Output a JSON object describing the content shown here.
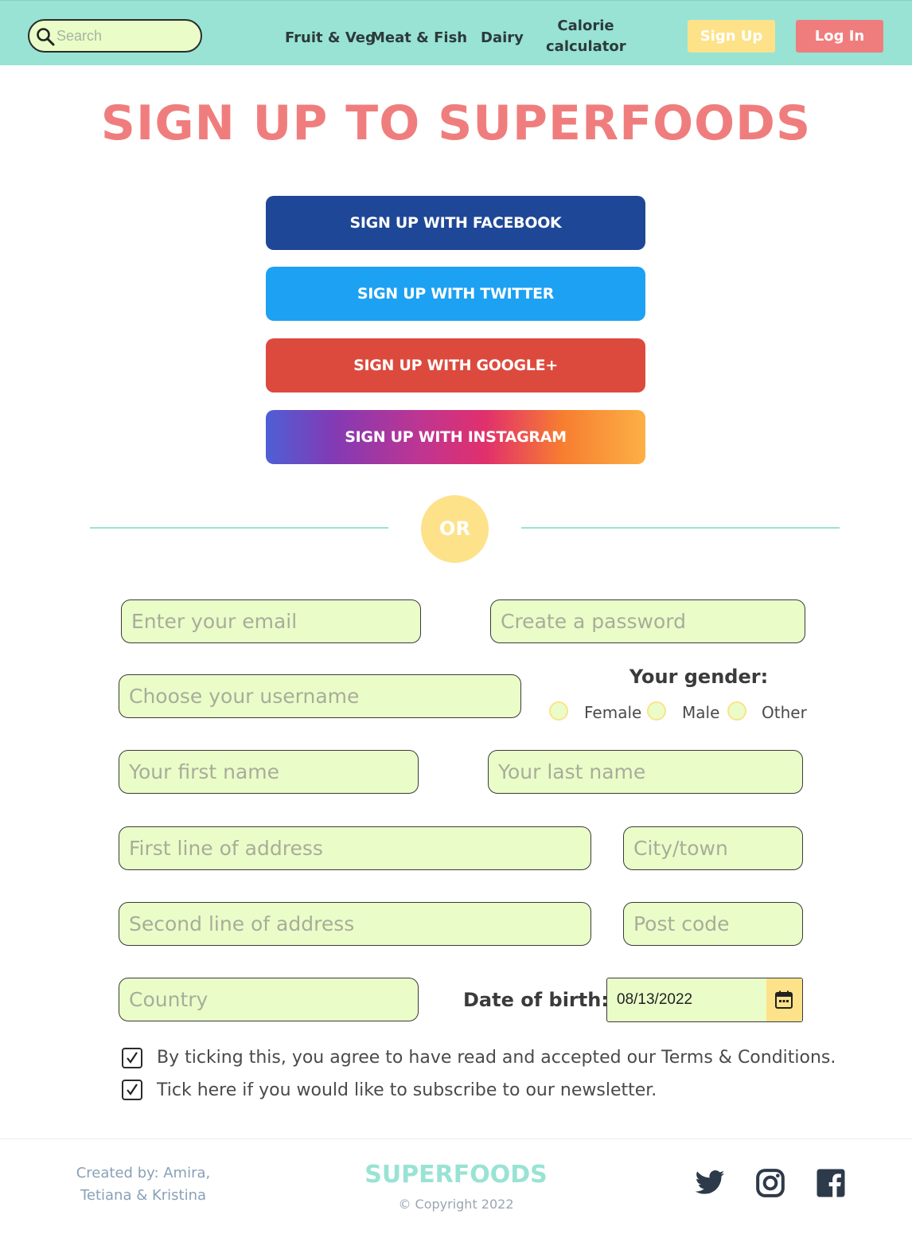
{
  "nav": {
    "search_placeholder": "Search",
    "links": [
      "Fruit & Veg",
      "Meat & Fish",
      "Dairy",
      "Calorie calculator"
    ],
    "calorie_line1": "Calorie",
    "calorie_line2": "calculator",
    "signup_label": "Sign Up",
    "login_label": "Log In"
  },
  "title": "SIGN UP TO SUPERFOODS",
  "social": {
    "facebook": "SIGN UP WITH FACEBOOK",
    "twitter": "SIGN UP WITH TWITTER",
    "google": "SIGN UP WITH GOOGLE+",
    "instagram": "SIGN UP WITH INSTAGRAM"
  },
  "or_label": "OR",
  "form": {
    "email_placeholder": "Enter your email",
    "password_placeholder": "Create a password",
    "username_placeholder": "Choose your username",
    "gender_title": "Your gender:",
    "gender_options": [
      "Female",
      "Male",
      "Other"
    ],
    "first_name_placeholder": "Your first name",
    "last_name_placeholder": "Your last name",
    "address1_placeholder": "First line of address",
    "city_placeholder": "City/town",
    "address2_placeholder": "Second line of address",
    "postcode_placeholder": "Post code",
    "country_placeholder": "Country",
    "dob_label": "Date of birth:",
    "dob_value": "08/13/2022",
    "terms_text": "By ticking this, you agree to have read and accepted our Terms & Conditions.",
    "newsletter_text": "Tick here if you would like to subscribe to our newsletter.",
    "terms_checked": true,
    "newsletter_checked": true
  },
  "footer": {
    "credit_line1": "Created by: Amira,",
    "credit_line2": "Tetiana & Kristina",
    "brand": "SUPERFOODS",
    "copyright": "© Copyright 2022"
  },
  "colors": {
    "nav_bg": "#98e3d4",
    "title": "#f07d7d",
    "signup_btn": "#fde28a",
    "login_btn": "#f07d7d",
    "facebook": "#1f4797",
    "twitter": "#1da1f2",
    "google": "#dc4a3d",
    "field_bg": "#eafdc8"
  },
  "icons": {
    "search": "search-icon",
    "calendar": "calendar-icon",
    "twitter": "twitter-icon",
    "instagram": "instagram-icon",
    "facebook": "facebook-icon"
  }
}
